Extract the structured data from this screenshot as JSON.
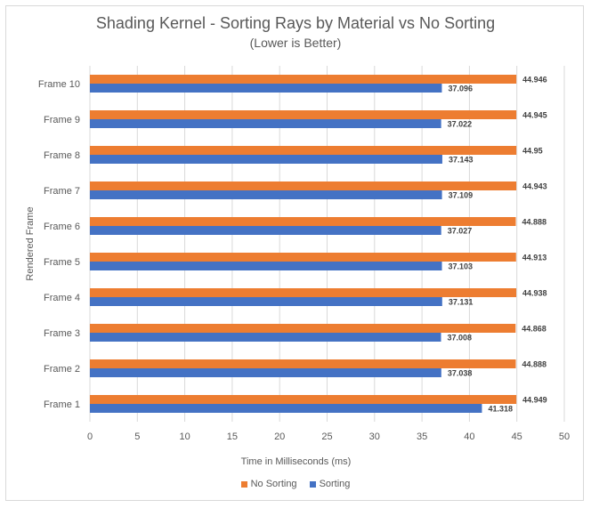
{
  "chart_data": {
    "type": "bar",
    "orientation": "horizontal",
    "title": "Shading Kernel - Sorting Rays by Material vs No Sorting",
    "subtitle": "(Lower is Better)",
    "xlabel": "Time in Milliseconds (ms)",
    "ylabel": "Rendered Frame",
    "xlim": [
      0,
      50
    ],
    "xticks": [
      0,
      5,
      10,
      15,
      20,
      25,
      30,
      35,
      40,
      45,
      50
    ],
    "grid": true,
    "legend_position": "bottom",
    "categories": [
      "Frame 1",
      "Frame 2",
      "Frame 3",
      "Frame 4",
      "Frame 5",
      "Frame 6",
      "Frame 7",
      "Frame 8",
      "Frame 9",
      "Frame 10"
    ],
    "series": [
      {
        "name": "No Sorting",
        "color": "#ed7d31",
        "values": [
          44.949,
          44.888,
          44.868,
          44.938,
          44.913,
          44.888,
          44.943,
          44.95,
          44.945,
          44.946
        ]
      },
      {
        "name": "Sorting",
        "color": "#4472c4",
        "values": [
          41.318,
          37.038,
          37.008,
          37.131,
          37.103,
          37.027,
          37.109,
          37.143,
          37.022,
          37.096
        ]
      }
    ]
  }
}
